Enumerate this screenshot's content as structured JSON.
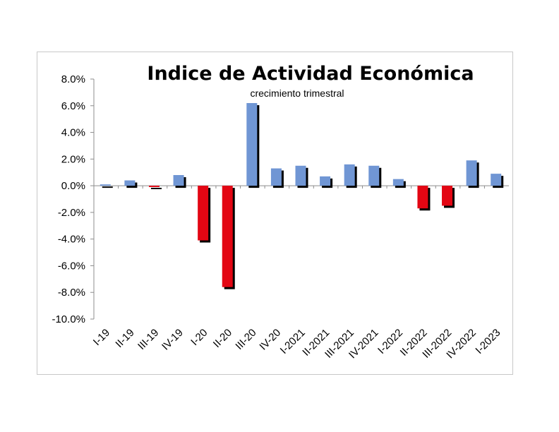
{
  "chart_data": {
    "type": "bar",
    "title": "Indice de Actividad Económica",
    "subtitle": "crecimiento trimestral",
    "xlabel": "",
    "ylabel": "",
    "ylim": [
      -0.1,
      0.08
    ],
    "yticks": [
      0.08,
      0.06,
      0.04,
      0.02,
      0.0,
      -0.02,
      -0.04,
      -0.06,
      -0.08,
      -0.1
    ],
    "ytick_labels": [
      "8.0%",
      "6.0%",
      "4.0%",
      "2.0%",
      "0.0%",
      "-2.0%",
      "-4.0%",
      "-6.0%",
      "-8.0%",
      "-10.0%"
    ],
    "categories": [
      "I-19",
      "II-19",
      "III-19",
      "IV-19",
      "I-20",
      "II-20",
      "III-20",
      "IV-20",
      "I-2021",
      "II-2021",
      "III-2021",
      "IV-2021",
      "I-2022",
      "II-2022",
      "III-2022",
      "IV-2022",
      "I-2023"
    ],
    "values": [
      0.001,
      0.004,
      -0.001,
      0.008,
      -0.041,
      -0.076,
      0.062,
      0.013,
      0.015,
      0.007,
      0.016,
      0.015,
      0.005,
      -0.017,
      -0.015,
      0.019,
      0.009
    ],
    "colors": {
      "positive": "#7096d4",
      "negative": "#e30613",
      "shadow": "#000000"
    },
    "grid": false,
    "legend": "none"
  }
}
